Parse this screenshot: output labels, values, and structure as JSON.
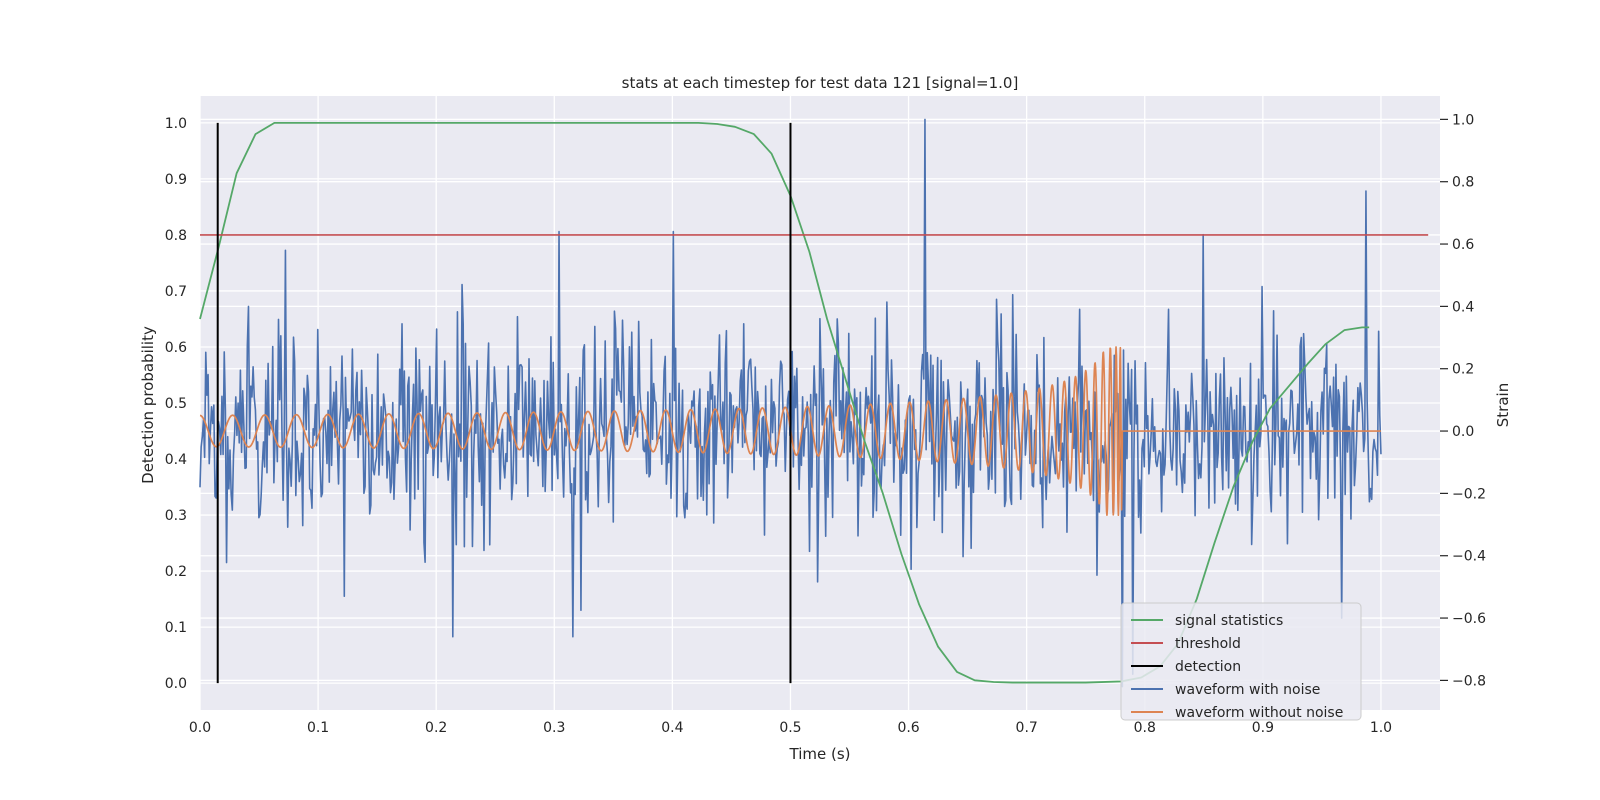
{
  "chart_data": {
    "type": "line",
    "title": "stats at each timestep for test data 121 [signal=1.0]",
    "xlabel": "Time (s)",
    "ylabel": "Detection probability",
    "ylabel_right": "Strain",
    "xlim": [
      0.0,
      1.05
    ],
    "ylim": [
      -0.048,
      1.048
    ],
    "ylim_right": [
      -0.895,
      1.075
    ],
    "xticks": [
      0.0,
      0.1,
      0.2,
      0.3,
      0.4,
      0.5,
      0.6,
      0.7,
      0.8,
      0.9,
      1.0
    ],
    "xtick_labels": [
      "0.0",
      "0.1",
      "0.2",
      "0.3",
      "0.4",
      "0.5",
      "0.6",
      "0.7",
      "0.8",
      "0.9",
      "1.0"
    ],
    "yticks": [
      0.0,
      0.1,
      0.2,
      0.3,
      0.4,
      0.5,
      0.6,
      0.7,
      0.8,
      0.9,
      1.0
    ],
    "ytick_labels": [
      "0.0",
      "0.1",
      "0.2",
      "0.3",
      "0.4",
      "0.5",
      "0.6",
      "0.7",
      "0.8",
      "0.9",
      "1.0"
    ],
    "yticks_right": [
      -0.8,
      -0.6,
      -0.4,
      -0.2,
      0.0,
      0.2,
      0.4,
      0.6,
      0.8,
      1.0
    ],
    "ytick_labels_right": [
      "−0.8",
      "−0.6",
      "−0.4",
      "−0.2",
      "0.0",
      "0.2",
      "0.4",
      "0.6",
      "0.8",
      "1.0"
    ],
    "grid": true,
    "legend_position": "lower-right",
    "series": [
      {
        "name": "signal statistics",
        "axis": "left",
        "color": "#55a868",
        "x": [
          0.0,
          0.016,
          0.031,
          0.047,
          0.063,
          0.078,
          0.094,
          0.109,
          0.125,
          0.2,
          0.3,
          0.4,
          0.422,
          0.438,
          0.453,
          0.469,
          0.484,
          0.5,
          0.516,
          0.531,
          0.547,
          0.563,
          0.578,
          0.594,
          0.609,
          0.625,
          0.641,
          0.656,
          0.672,
          0.688,
          0.75,
          0.78,
          0.797,
          0.813,
          0.828,
          0.844,
          0.859,
          0.875,
          0.891,
          0.906,
          0.922,
          0.938,
          0.953,
          0.969,
          0.984,
          0.99
        ],
        "values": [
          0.65,
          0.78,
          0.91,
          0.98,
          1.0,
          1.0,
          1.0,
          1.0,
          1.0,
          1.0,
          1.0,
          1.0,
          1.0,
          0.998,
          0.993,
          0.98,
          0.945,
          0.87,
          0.77,
          0.65,
          0.54,
          0.43,
          0.34,
          0.23,
          0.14,
          0.065,
          0.02,
          0.005,
          0.002,
          0.001,
          0.001,
          0.003,
          0.01,
          0.03,
          0.07,
          0.15,
          0.25,
          0.35,
          0.43,
          0.49,
          0.53,
          0.57,
          0.605,
          0.63,
          0.635,
          0.635
        ]
      },
      {
        "name": "threshold",
        "axis": "left",
        "color": "#c44e52",
        "x": [
          0.0,
          1.04
        ],
        "values": [
          0.8,
          0.8
        ]
      },
      {
        "name": "detection",
        "axis": "left",
        "color": "#000000",
        "x": [
          0.015,
          0.5
        ],
        "ymin": 0.0,
        "ymax": 1.0
      },
      {
        "name": "waveform with noise",
        "axis": "right",
        "color": "#4c72b0",
        "x_range": [
          0.0,
          1.0
        ],
        "samples": 1024,
        "noise_std": 0.16,
        "peaks": [
          [
            0.614,
            1.0
          ],
          [
            0.849,
            0.63
          ],
          [
            0.304,
            0.64
          ],
          [
            0.401,
            0.64
          ],
          [
            0.987,
            0.77
          ],
          [
            0.072,
            0.58
          ],
          [
            0.222,
            0.47
          ],
          [
            0.782,
            0.26
          ],
          [
            0.214,
            -0.66
          ],
          [
            0.316,
            -0.66
          ],
          [
            0.122,
            -0.53
          ],
          [
            0.781,
            -0.82
          ],
          [
            0.79,
            -0.78
          ],
          [
            0.967,
            -0.6
          ]
        ]
      },
      {
        "name": "waveform without noise",
        "axis": "right",
        "color": "#dd8452",
        "x_range": [
          0.0,
          1.0
        ],
        "chirp": {
          "f0": 36,
          "tc": 0.781,
          "amp_early": 0.05,
          "amp_peak": 0.27,
          "zero_after": 0.781
        }
      }
    ]
  }
}
